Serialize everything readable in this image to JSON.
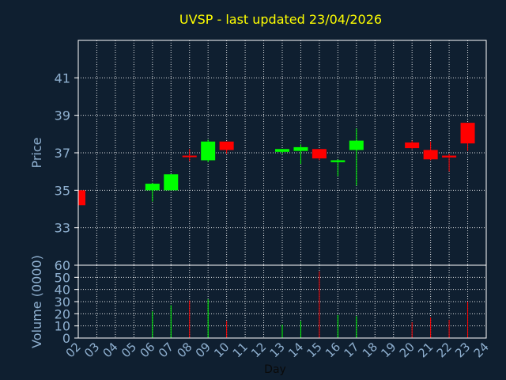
{
  "chart_data": {
    "type": "candlestick",
    "title": "UVSP - last updated 23/04/2026",
    "xlabel": "Day",
    "price_panel": {
      "ylabel": "Price",
      "ylim": [
        31,
        43
      ],
      "yticks": [
        33,
        35,
        37,
        39,
        41
      ]
    },
    "volume_panel": {
      "ylabel": "Volume (0000)",
      "ylim": [
        0,
        60
      ],
      "yticks": [
        0,
        10,
        20,
        30,
        40,
        50,
        60
      ]
    },
    "x_ticks": [
      "02",
      "03",
      "04",
      "05",
      "06",
      "07",
      "08",
      "09",
      "10",
      "11",
      "12",
      "13",
      "14",
      "15",
      "16",
      "17",
      "18",
      "19",
      "20",
      "21",
      "22",
      "23",
      "24"
    ],
    "x_range": [
      2,
      24
    ],
    "grid": true,
    "colors": {
      "up": "#00ff00",
      "down": "#ff0000",
      "background": "#0f1f30",
      "title": "#ffff00",
      "axis_text": "#8fb0d0"
    },
    "candles": [
      {
        "day": 2,
        "open": 35.0,
        "high": 35.0,
        "low": 34.2,
        "close": 34.2,
        "volume": 0
      },
      {
        "day": 6,
        "open": 35.0,
        "high": 35.4,
        "low": 34.4,
        "close": 35.35,
        "volume": 22
      },
      {
        "day": 7,
        "open": 35.0,
        "high": 35.85,
        "low": 35.0,
        "close": 35.85,
        "volume": 27
      },
      {
        "day": 8,
        "open": 36.85,
        "high": 37.2,
        "low": 36.55,
        "close": 36.8,
        "volume": 31
      },
      {
        "day": 9,
        "open": 36.6,
        "high": 37.7,
        "low": 36.5,
        "close": 37.6,
        "volume": 32
      },
      {
        "day": 10,
        "open": 37.6,
        "high": 37.6,
        "low": 36.95,
        "close": 37.15,
        "volume": 14
      },
      {
        "day": 13,
        "open": 37.05,
        "high": 37.2,
        "low": 36.95,
        "close": 37.2,
        "volume": 11
      },
      {
        "day": 14,
        "open": 37.1,
        "high": 37.45,
        "low": 36.4,
        "close": 37.3,
        "volume": 14
      },
      {
        "day": 15,
        "open": 37.2,
        "high": 37.2,
        "low": 36.6,
        "close": 36.7,
        "volume": 55
      },
      {
        "day": 16,
        "open": 36.5,
        "high": 36.65,
        "low": 35.75,
        "close": 36.6,
        "volume": 19
      },
      {
        "day": 17,
        "open": 37.15,
        "high": 38.3,
        "low": 35.25,
        "close": 37.65,
        "volume": 18
      },
      {
        "day": 20,
        "open": 37.55,
        "high": 37.65,
        "low": 37.2,
        "close": 37.25,
        "volume": 13
      },
      {
        "day": 21,
        "open": 37.15,
        "high": 37.6,
        "low": 36.6,
        "close": 36.65,
        "volume": 17
      },
      {
        "day": 22,
        "open": 36.85,
        "high": 36.95,
        "low": 36.0,
        "close": 36.75,
        "volume": 15
      },
      {
        "day": 23,
        "open": 38.6,
        "high": 38.6,
        "low": 37.1,
        "close": 37.5,
        "volume": 30
      }
    ]
  }
}
